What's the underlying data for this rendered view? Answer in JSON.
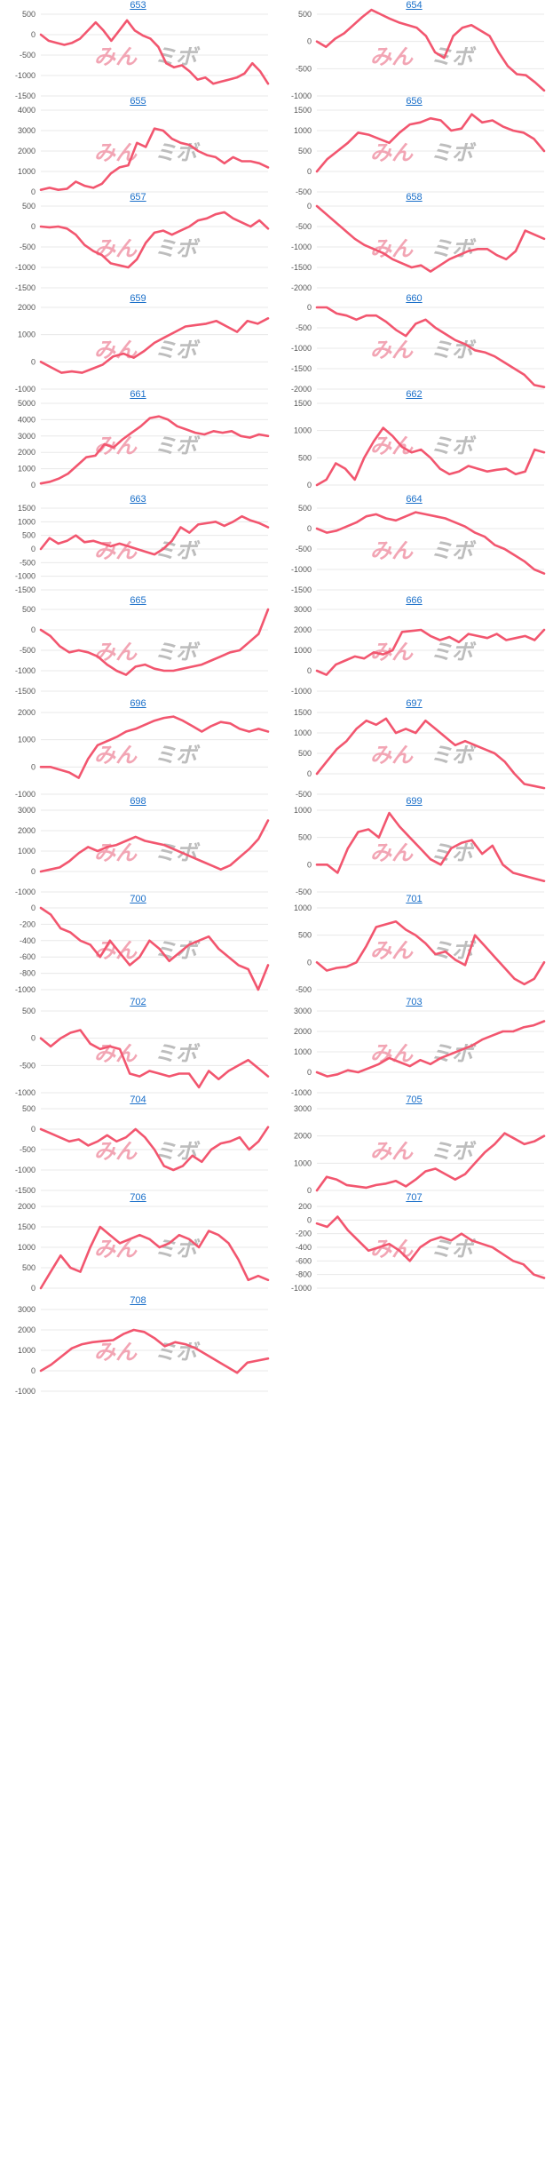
{
  "watermark": {
    "left": "みん",
    "right": "ミボ"
  },
  "colors": {
    "line": "#f2566f",
    "link": "#1a6fc9",
    "grid": "#e8e8e8"
  },
  "chart_data": [
    {
      "type": "line",
      "title": "653",
      "ylim": [
        -1500,
        500
      ],
      "yticks": [
        500,
        0,
        -500,
        -1000,
        -1500
      ],
      "values": [
        0,
        -150,
        -200,
        -250,
        -200,
        -100,
        100,
        300,
        100,
        -150,
        100,
        350,
        100,
        -20,
        -100,
        -300,
        -700,
        -800,
        -750,
        -900,
        -1100,
        -1050,
        -1200,
        -1150,
        -1100,
        -1050,
        -950,
        -700,
        -900,
        -1200
      ]
    },
    {
      "type": "line",
      "title": "654",
      "ylim": [
        -1000,
        500
      ],
      "yticks": [
        500,
        0,
        -500,
        -1000
      ],
      "values": [
        0,
        -100,
        50,
        150,
        300,
        450,
        580,
        500,
        420,
        350,
        300,
        250,
        100,
        -200,
        -300,
        100,
        250,
        300,
        200,
        100,
        -200,
        -450,
        -600,
        -620,
        -750,
        -900
      ]
    },
    {
      "type": "line",
      "title": "655",
      "ylim": [
        0,
        4000
      ],
      "yticks": [
        4000,
        3000,
        2000,
        1000,
        0
      ],
      "values": [
        100,
        200,
        100,
        150,
        500,
        300,
        200,
        400,
        900,
        1200,
        1300,
        2400,
        2200,
        3100,
        3000,
        2600,
        2400,
        2300,
        2000,
        1800,
        1700,
        1400,
        1700,
        1500,
        1500,
        1400,
        1200
      ]
    },
    {
      "type": "line",
      "title": "656",
      "ylim": [
        -500,
        1500
      ],
      "yticks": [
        1500,
        1000,
        500,
        0,
        -500
      ],
      "values": [
        0,
        300,
        500,
        700,
        950,
        900,
        800,
        700,
        950,
        1150,
        1200,
        1300,
        1250,
        1000,
        1050,
        1400,
        1200,
        1250,
        1100,
        1000,
        950,
        800,
        500
      ]
    },
    {
      "type": "line",
      "title": "657",
      "ylim": [
        -1500,
        500
      ],
      "yticks": [
        500,
        0,
        -500,
        -1000,
        -1500
      ],
      "values": [
        0,
        -20,
        0,
        -50,
        -200,
        -450,
        -600,
        -700,
        -900,
        -950,
        -1000,
        -800,
        -400,
        -150,
        -100,
        -200,
        -100,
        0,
        150,
        200,
        300,
        350,
        200,
        100,
        0,
        150,
        -50
      ]
    },
    {
      "type": "line",
      "title": "658",
      "ylim": [
        -2000,
        0
      ],
      "yticks": [
        0,
        -500,
        -1000,
        -1500,
        -2000
      ],
      "values": [
        0,
        -200,
        -400,
        -600,
        -800,
        -950,
        -1050,
        -1150,
        -1300,
        -1400,
        -1500,
        -1450,
        -1600,
        -1450,
        -1300,
        -1200,
        -1100,
        -1050,
        -1050,
        -1200,
        -1300,
        -1100,
        -600,
        -700,
        -800
      ]
    },
    {
      "type": "line",
      "title": "659",
      "ylim": [
        -1000,
        2000
      ],
      "yticks": [
        2000,
        1000,
        0,
        -1000
      ],
      "values": [
        0,
        -200,
        -400,
        -350,
        -400,
        -250,
        -100,
        200,
        300,
        150,
        400,
        700,
        900,
        1100,
        1300,
        1350,
        1400,
        1500,
        1300,
        1100,
        1500,
        1400,
        1600
      ]
    },
    {
      "type": "line",
      "title": "660",
      "ylim": [
        -2000,
        0
      ],
      "yticks": [
        0,
        -500,
        -1000,
        -1500,
        -2000
      ],
      "values": [
        0,
        0,
        -150,
        -200,
        -300,
        -200,
        -200,
        -350,
        -550,
        -700,
        -400,
        -300,
        -500,
        -650,
        -800,
        -900,
        -1050,
        -1100,
        -1200,
        -1350,
        -1500,
        -1650,
        -1900,
        -1950
      ]
    },
    {
      "type": "line",
      "title": "661",
      "ylim": [
        0,
        5000
      ],
      "yticks": [
        5000,
        4000,
        3000,
        2000,
        1000,
        0
      ],
      "values": [
        100,
        200,
        400,
        700,
        1200,
        1700,
        1800,
        2500,
        2300,
        2800,
        3200,
        3600,
        4100,
        4200,
        4000,
        3600,
        3400,
        3200,
        3100,
        3300,
        3200,
        3300,
        3000,
        2900,
        3100,
        3000
      ]
    },
    {
      "type": "line",
      "title": "662",
      "ylim": [
        0,
        1500
      ],
      "yticks": [
        1500,
        1000,
        500,
        0
      ],
      "values": [
        0,
        100,
        400,
        300,
        100,
        500,
        800,
        1050,
        900,
        700,
        600,
        650,
        500,
        300,
        200,
        250,
        350,
        300,
        250,
        280,
        300,
        200,
        250,
        650,
        600
      ]
    },
    {
      "type": "line",
      "title": "663",
      "ylim": [
        -1500,
        1500
      ],
      "yticks": [
        1500,
        1000,
        500,
        0,
        -500,
        -1000,
        -1500
      ],
      "values": [
        0,
        400,
        200,
        300,
        500,
        250,
        300,
        200,
        100,
        200,
        100,
        0,
        -100,
        -200,
        0,
        300,
        800,
        600,
        900,
        950,
        1000,
        850,
        1000,
        1200,
        1050,
        950,
        800
      ]
    },
    {
      "type": "line",
      "title": "664",
      "ylim": [
        -1500,
        500
      ],
      "yticks": [
        500,
        0,
        -500,
        -1000,
        -1500
      ],
      "values": [
        0,
        -100,
        -50,
        50,
        150,
        300,
        350,
        250,
        200,
        300,
        400,
        350,
        300,
        250,
        150,
        50,
        -100,
        -200,
        -400,
        -500,
        -650,
        -800,
        -1000,
        -1100
      ]
    },
    {
      "type": "line",
      "title": "665",
      "ylim": [
        -1500,
        500
      ],
      "yticks": [
        500,
        0,
        -500,
        -1000,
        -1500
      ],
      "values": [
        0,
        -150,
        -400,
        -550,
        -500,
        -550,
        -650,
        -850,
        -1000,
        -1100,
        -900,
        -850,
        -950,
        -1000,
        -1000,
        -950,
        -900,
        -850,
        -750,
        -650,
        -550,
        -500,
        -300,
        -100,
        500
      ]
    },
    {
      "type": "line",
      "title": "666",
      "ylim": [
        -1000,
        3000
      ],
      "yticks": [
        3000,
        2000,
        1000,
        0,
        -1000
      ],
      "values": [
        0,
        -200,
        300,
        500,
        700,
        600,
        900,
        800,
        1000,
        1900,
        1950,
        2000,
        1700,
        1500,
        1650,
        1400,
        1800,
        1700,
        1600,
        1800,
        1500,
        1600,
        1700,
        1500,
        2000
      ]
    },
    {
      "type": "line",
      "title": "696",
      "ylim": [
        -1000,
        2000
      ],
      "yticks": [
        2000,
        1000,
        0,
        -1000
      ],
      "values": [
        0,
        0,
        -100,
        -200,
        -400,
        300,
        800,
        950,
        1100,
        1300,
        1400,
        1550,
        1700,
        1800,
        1850,
        1700,
        1500,
        1300,
        1500,
        1650,
        1600,
        1400,
        1300,
        1400,
        1300
      ]
    },
    {
      "type": "line",
      "title": "697",
      "ylim": [
        -500,
        1500
      ],
      "yticks": [
        1500,
        1000,
        500,
        0,
        -500
      ],
      "values": [
        0,
        300,
        600,
        800,
        1100,
        1300,
        1200,
        1350,
        1000,
        1100,
        1000,
        1300,
        1100,
        900,
        700,
        800,
        700,
        600,
        500,
        300,
        0,
        -250,
        -300,
        -350
      ]
    },
    {
      "type": "line",
      "title": "698",
      "ylim": [
        -1000,
        3000
      ],
      "yticks": [
        3000,
        2000,
        1000,
        0,
        -1000
      ],
      "values": [
        0,
        100,
        200,
        500,
        900,
        1200,
        1000,
        1200,
        1300,
        1500,
        1700,
        1500,
        1400,
        1300,
        1100,
        900,
        700,
        500,
        300,
        100,
        300,
        700,
        1100,
        1600,
        2500
      ]
    },
    {
      "type": "line",
      "title": "699",
      "ylim": [
        -500,
        1000
      ],
      "yticks": [
        1000,
        500,
        0,
        -500
      ],
      "values": [
        0,
        0,
        -150,
        300,
        600,
        650,
        500,
        950,
        700,
        500,
        300,
        100,
        0,
        300,
        400,
        450,
        200,
        350,
        0,
        -150,
        -200,
        -250,
        -300
      ]
    },
    {
      "type": "line",
      "title": "700",
      "ylim": [
        -1000,
        0
      ],
      "yticks": [
        0,
        -200,
        -400,
        -600,
        -800,
        -1000
      ],
      "values": [
        0,
        -80,
        -250,
        -300,
        -400,
        -450,
        -600,
        -400,
        -550,
        -700,
        -600,
        -400,
        -500,
        -650,
        -550,
        -450,
        -400,
        -350,
        -500,
        -600,
        -700,
        -750,
        -1000,
        -700
      ]
    },
    {
      "type": "line",
      "title": "701",
      "ylim": [
        -500,
        1000
      ],
      "yticks": [
        1000,
        500,
        0,
        -500
      ],
      "values": [
        0,
        -150,
        -100,
        -80,
        0,
        300,
        650,
        700,
        750,
        600,
        500,
        350,
        150,
        200,
        50,
        -50,
        500,
        300,
        100,
        -100,
        -300,
        -400,
        -300,
        0
      ]
    },
    {
      "type": "line",
      "title": "702",
      "ylim": [
        -1000,
        500
      ],
      "yticks": [
        500,
        0,
        -500,
        -1000
      ],
      "values": [
        0,
        -150,
        0,
        100,
        150,
        -100,
        -200,
        -150,
        -200,
        -650,
        -700,
        -600,
        -650,
        -700,
        -650,
        -650,
        -900,
        -600,
        -750,
        -600,
        -500,
        -400,
        -550,
        -700
      ]
    },
    {
      "type": "line",
      "title": "703",
      "ylim": [
        -1000,
        3000
      ],
      "yticks": [
        3000,
        2000,
        1000,
        0,
        -1000
      ],
      "values": [
        0,
        -200,
        -100,
        100,
        0,
        200,
        400,
        700,
        500,
        300,
        600,
        400,
        700,
        900,
        1100,
        1300,
        1600,
        1800,
        2000,
        2000,
        2200,
        2300,
        2500
      ]
    },
    {
      "type": "line",
      "title": "704",
      "ylim": [
        -1500,
        500
      ],
      "yticks": [
        500,
        0,
        -500,
        -1000,
        -1500
      ],
      "values": [
        0,
        -100,
        -200,
        -300,
        -250,
        -400,
        -300,
        -150,
        -300,
        -200,
        0,
        -200,
        -500,
        -900,
        -1000,
        -900,
        -650,
        -800,
        -500,
        -350,
        -300,
        -200,
        -500,
        -300,
        50
      ]
    },
    {
      "type": "line",
      "title": "705",
      "ylim": [
        0,
        3000
      ],
      "yticks": [
        3000,
        2000,
        1000,
        0
      ],
      "values": [
        0,
        500,
        400,
        200,
        150,
        100,
        200,
        250,
        350,
        150,
        400,
        700,
        800,
        600,
        400,
        600,
        1000,
        1400,
        1700,
        2100,
        1900,
        1700,
        1800,
        2000
      ]
    },
    {
      "type": "line",
      "title": "706",
      "ylim": [
        0,
        2000
      ],
      "yticks": [
        2000,
        1500,
        1000,
        500,
        0
      ],
      "values": [
        0,
        400,
        800,
        500,
        400,
        1000,
        1500,
        1300,
        1100,
        1200,
        1300,
        1200,
        1000,
        1100,
        1300,
        1200,
        1000,
        1400,
        1300,
        1100,
        700,
        200,
        300,
        200
      ]
    },
    {
      "type": "line",
      "title": "707",
      "ylim": [
        -1000,
        200
      ],
      "yticks": [
        200,
        0,
        -200,
        -400,
        -600,
        -800,
        -1000
      ],
      "values": [
        -50,
        -100,
        50,
        -150,
        -300,
        -450,
        -400,
        -350,
        -450,
        -600,
        -400,
        -300,
        -250,
        -300,
        -200,
        -300,
        -350,
        -400,
        -500,
        -600,
        -650,
        -800,
        -850
      ]
    },
    {
      "type": "line",
      "title": "708",
      "ylim": [
        -1000,
        3000
      ],
      "yticks": [
        3000,
        2000,
        1000,
        0,
        -1000
      ],
      "values": [
        0,
        300,
        700,
        1100,
        1300,
        1400,
        1450,
        1500,
        1800,
        2000,
        1900,
        1600,
        1200,
        1400,
        1300,
        1100,
        800,
        500,
        200,
        -100,
        400,
        500,
        600
      ]
    }
  ]
}
